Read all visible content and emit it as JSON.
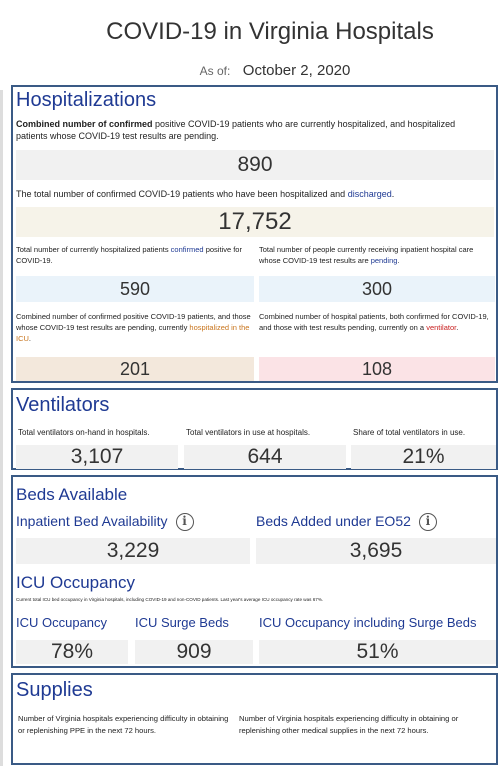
{
  "header": {
    "title": "COVID-19 in Virginia Hospitals",
    "as_of_label": "As of:",
    "as_of_date": "October 2, 2020"
  },
  "hospitalizations": {
    "title": "Hospitalizations",
    "combined_desc_bold": "Combined number of confirmed",
    "combined_desc_rest": " positive COVID-19 patients who are currently hospitalized, and hospitalized patients whose COVID-19 test results are pending.",
    "combined_value": "890",
    "total_desc": "The total number of confirmed COVID-19 patients who have been hospitalized and ",
    "total_desc_link": "discharged",
    "total_desc_end": ".",
    "total_value": "17,752",
    "confirmed_desc_a": "Total number of currently hospitalized patients ",
    "confirmed_desc_link": "confirmed",
    "confirmed_desc_b": " positive for COVID-19.",
    "confirmed_value": "590",
    "pending_desc_a": "Total number of people currently receiving inpatient hospital care whose COVID-19 test results are ",
    "pending_desc_link": "pending",
    "pending_desc_b": ".",
    "pending_value": "300",
    "icu_desc_a": "Combined number of confirmed positive COVID-19 patients, and those whose COVID-19 test results are pending, currently ",
    "icu_desc_link": "hospitalized in the ICU",
    "icu_desc_b": ".",
    "icu_value": "201",
    "vent_desc_a": "Combined number of hospital patients, both confirmed for COVID-19, and those with test results pending, currently on a ",
    "vent_desc_link": "ventilator",
    "vent_desc_b": ".",
    "vent_value": "108"
  },
  "ventilators": {
    "title": "Ventilators",
    "onhand_label": "Total ventilators on-hand in hospitals.",
    "onhand_value": "3,107",
    "inuse_label": "Total ventilators in use at hospitals.",
    "inuse_value": "644",
    "share_label": "Share of total ventilators in use.",
    "share_value": "21%"
  },
  "beds": {
    "title": "Beds Available",
    "inpatient_label": "Inpatient Bed Availability",
    "inpatient_value": "3,229",
    "added_label": "Beds Added under EO52",
    "added_value": "3,695",
    "info_icon": "i",
    "icu_title": "ICU Occupancy",
    "icu_note": "Current total ICU bed occupancy in Virginia hospitals, including COVID-19 and non-COVID patients. Last year's average ICU occupancy rate was 67%.",
    "icu_occ_label": "ICU Occupancy",
    "icu_occ_value": "78%",
    "icu_surge_label": "ICU Surge Beds",
    "icu_surge_value": "909",
    "icu_incl_label": "ICU Occupancy including Surge Beds",
    "icu_incl_value": "51%"
  },
  "supplies": {
    "title": "Supplies",
    "ppe_desc": "Number of Virginia hospitals experiencing difficulty in obtaining or replenishing PPE in the next 72 hours.",
    "other_desc": "Number of Virginia hospitals experiencing difficulty in obtaining or replenishing other medical supplies in the next 72 hours."
  },
  "colors": {
    "accent": "#1f3a93",
    "border": "#3a5a85",
    "icu_orange": "#c8741c",
    "vent_red": "#c81e1e"
  }
}
